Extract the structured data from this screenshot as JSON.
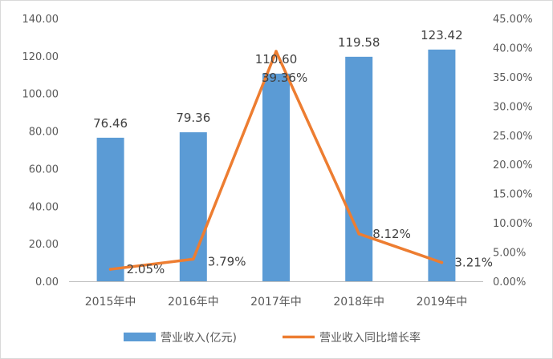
{
  "chart_data": {
    "type": "bar",
    "categories": [
      "2015年中",
      "2016年中",
      "2017年中",
      "2018年中",
      "2019年中"
    ],
    "series": [
      {
        "name": "营业收入(亿元)",
        "kind": "bar",
        "axis": "left",
        "values": [
          76.46,
          79.36,
          110.6,
          119.58,
          123.42
        ],
        "labels": [
          "76.46",
          "79.36",
          "110.60",
          "119.58",
          "123.42"
        ]
      },
      {
        "name": "营业收入同比增长率",
        "kind": "line",
        "axis": "right",
        "values": [
          2.05,
          3.79,
          39.36,
          8.12,
          3.21
        ],
        "labels": [
          "2.05%",
          "3.79%",
          "39.36%",
          "8.12%",
          "3.21%"
        ]
      }
    ],
    "y_left": {
      "range": [
        0,
        140
      ],
      "ticks": [
        "0.00",
        "20.00",
        "40.00",
        "60.00",
        "80.00",
        "100.00",
        "120.00",
        "140.00"
      ]
    },
    "y_right": {
      "range": [
        0,
        45
      ],
      "ticks": [
        "0.00%",
        "5.00%",
        "10.00%",
        "15.00%",
        "20.00%",
        "25.00%",
        "30.00%",
        "35.00%",
        "40.00%",
        "45.00%"
      ]
    },
    "grid": false,
    "legend_position": "bottom",
    "colors": {
      "bar": "#5b9bd5",
      "line": "#ed7d31"
    }
  }
}
